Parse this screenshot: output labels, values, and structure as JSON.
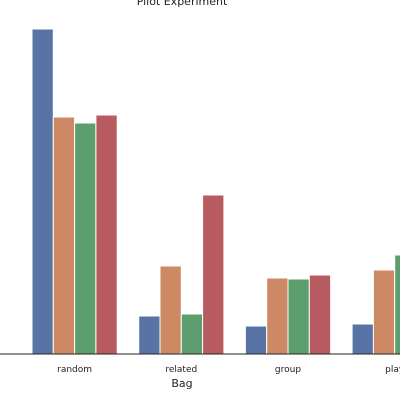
{
  "chart_data": {
    "type": "bar",
    "title": "Pilot Experiment",
    "xlabel": "Bag",
    "ylabel": "",
    "categories": [
      "random",
      "related",
      "group",
      "play"
    ],
    "series": [
      {
        "values": [
          325,
          38,
          28,
          30
        ],
        "color": "#5874a6"
      },
      {
        "values": [
          237,
          88,
          76,
          84
        ],
        "color": "#cc8963"
      },
      {
        "values": [
          231,
          40,
          75,
          99
        ],
        "color": "#5c9e6d"
      },
      {
        "values": [
          239,
          159,
          79,
          0
        ],
        "color": "#b75b60"
      }
    ],
    "grid": false,
    "legend": "none"
  }
}
